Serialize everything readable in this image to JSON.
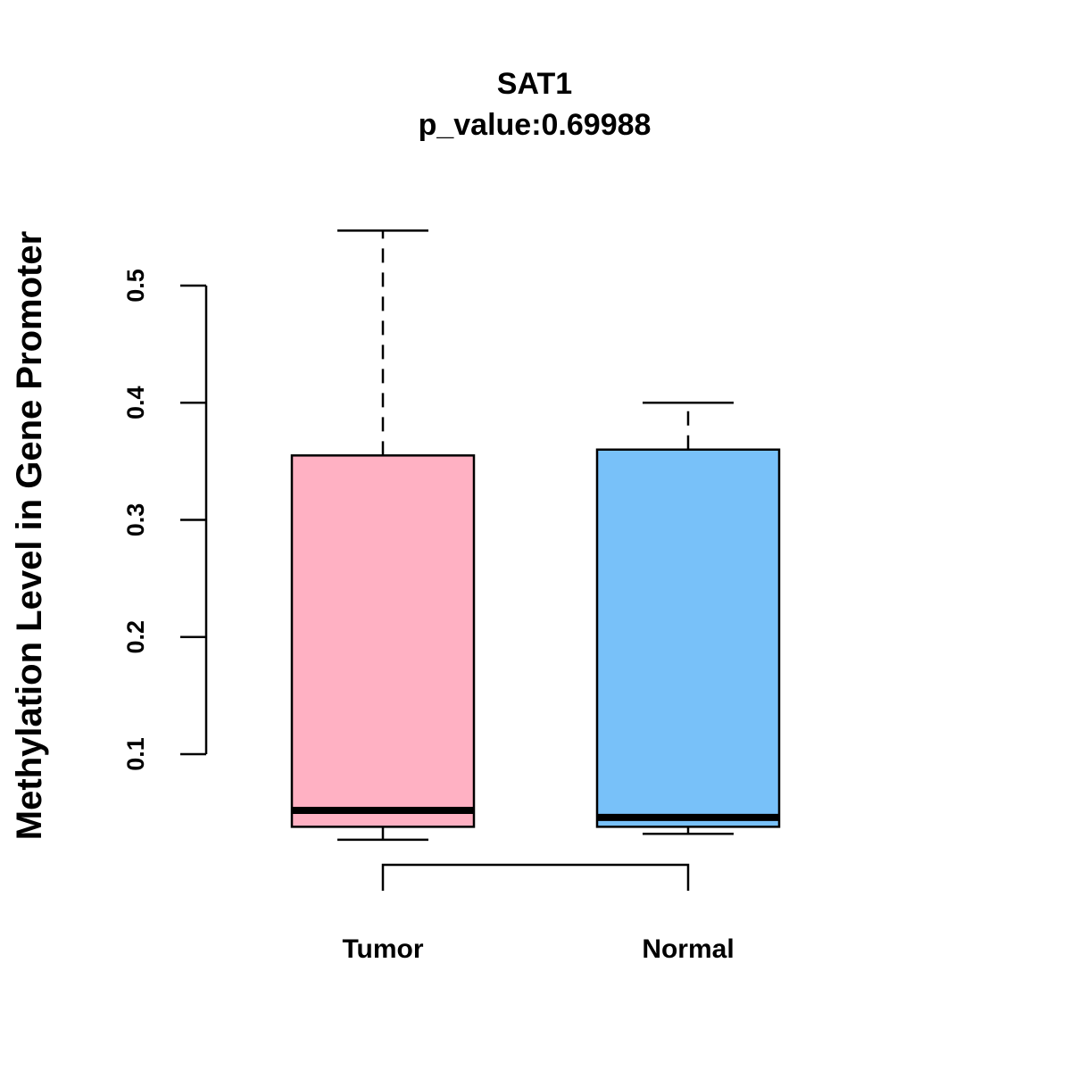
{
  "chart_data": {
    "type": "boxplot",
    "title": "SAT1",
    "subtitle": "p_value:0.69988",
    "xlabel": "",
    "ylabel": "Methylation Level in Gene Promoter",
    "y_ticks": [
      0.1,
      0.2,
      0.3,
      0.4,
      0.5
    ],
    "y_tick_labels": [
      "0.1",
      "0.2",
      "0.3",
      "0.4",
      "0.5"
    ],
    "grid": false,
    "groups": [
      {
        "name": "Tumor",
        "color": "#FFB1C3",
        "whisker_low": 0.027,
        "q1": 0.038,
        "median": 0.052,
        "q3": 0.355,
        "whisker_high": 0.547
      },
      {
        "name": "Normal",
        "color": "#78C1F9",
        "whisker_low": 0.032,
        "q1": 0.038,
        "median": 0.046,
        "q3": 0.36,
        "whisker_high": 0.4
      }
    ],
    "comparison_bracket": {
      "from": "Tumor",
      "to": "Normal"
    }
  }
}
